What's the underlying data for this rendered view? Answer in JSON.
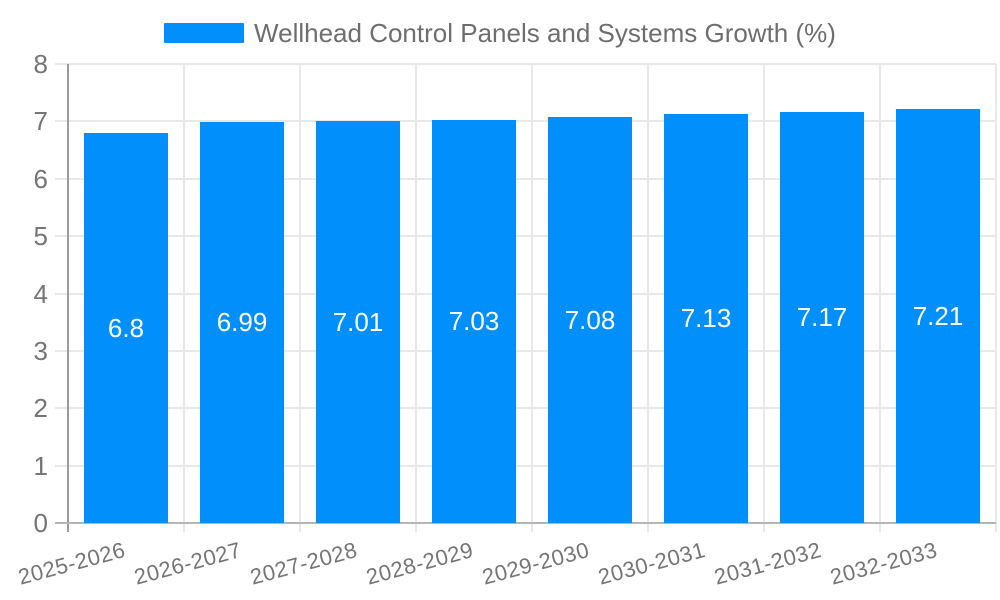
{
  "legend": {
    "label": "Wellhead Control Panels and Systems Growth (%)"
  },
  "chart_data": {
    "type": "bar",
    "title": "Wellhead Control Panels and Systems Growth (%)",
    "categories": [
      "2025-2026",
      "2026-2027",
      "2027-2028",
      "2028-2029",
      "2029-2030",
      "2030-2031",
      "2031-2032",
      "2032-2033"
    ],
    "values": [
      6.8,
      6.99,
      7.01,
      7.03,
      7.08,
      7.13,
      7.17,
      7.21
    ],
    "value_labels": [
      "6.8",
      "6.99",
      "7.01",
      "7.03",
      "7.08",
      "7.13",
      "7.17",
      "7.21"
    ],
    "xlabel": "",
    "ylabel": "",
    "ylim": [
      0,
      8
    ],
    "yticks": [
      0,
      1,
      2,
      3,
      4,
      5,
      6,
      7,
      8
    ],
    "grid": "horizontal-and-vertical",
    "legend_position": "top-center",
    "colors": {
      "bar": "#008FFB",
      "bar_label": "#ffffff",
      "grid": "#e8e8e8",
      "x_axis_line": "#b5b5b5",
      "y_axis_line": "#9a9a9a",
      "tick_label": "#757575",
      "legend_text": "#6E6E6E"
    }
  }
}
